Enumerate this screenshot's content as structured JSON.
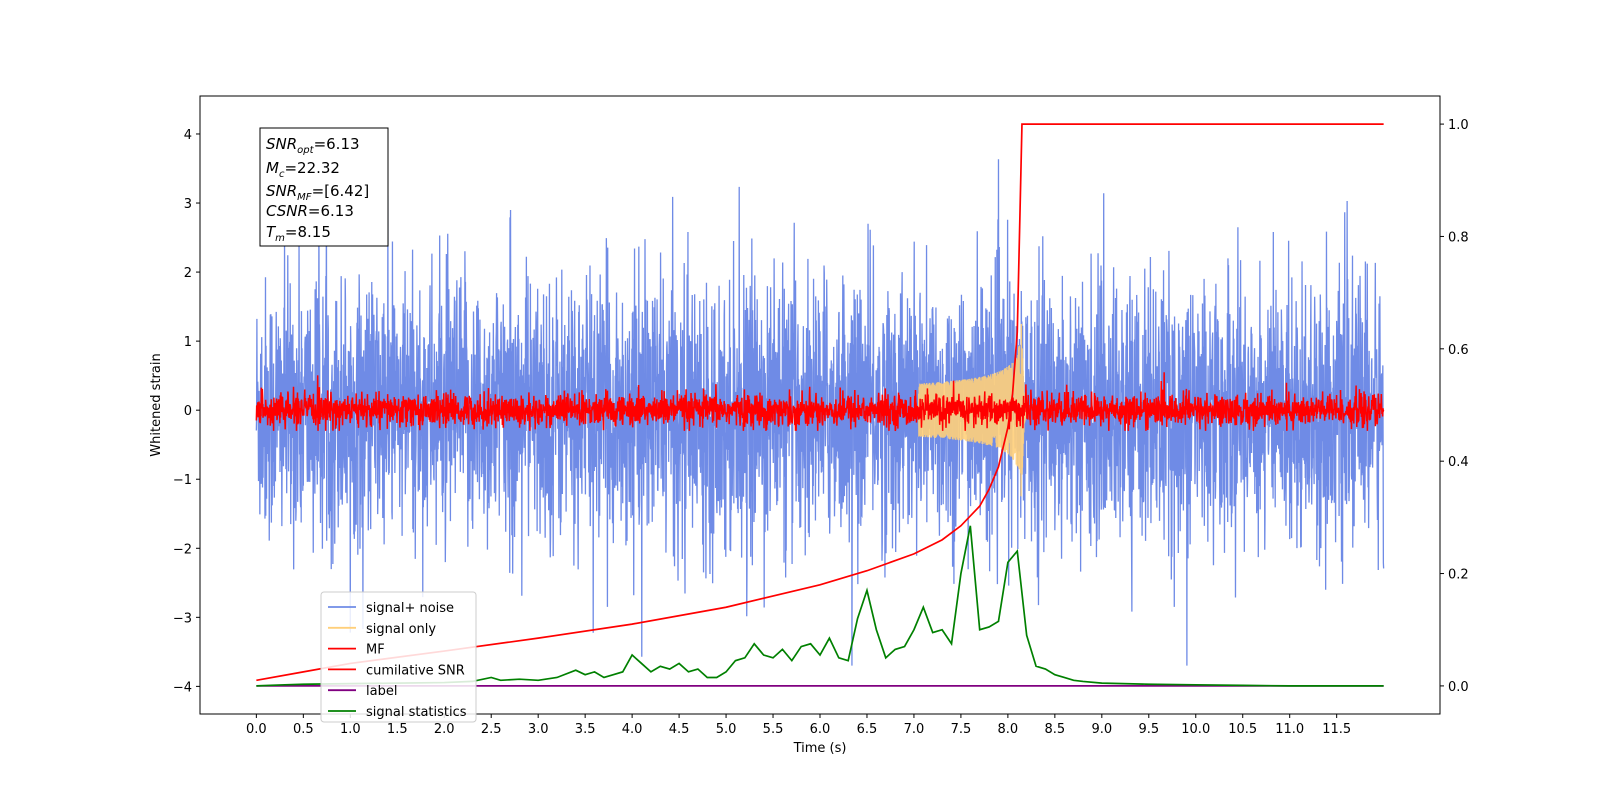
{
  "chart_data": {
    "type": "line",
    "xlabel": "Time (s)",
    "ylabel": "Whitened strain",
    "xlim": [
      -0.6,
      12.6
    ],
    "ylim": [
      -4.4,
      4.55
    ],
    "y2lim": [
      -0.05,
      1.05
    ],
    "x_ticks": [
      0.0,
      0.5,
      1.0,
      1.5,
      2.0,
      2.5,
      3.0,
      3.5,
      4.0,
      4.5,
      5.0,
      5.5,
      6.0,
      6.5,
      7.0,
      7.5,
      8.0,
      8.5,
      9.0,
      9.5,
      10.0,
      10.5,
      11.0,
      11.5
    ],
    "x_tick_labels": [
      "0.0",
      "0.5",
      "1.0",
      "1.5",
      "2.0",
      "2.5",
      "3.0",
      "3.5",
      "4.0",
      "4.5",
      "5.0",
      "5.5",
      "6.0",
      "6.5",
      "7.0",
      "7.5",
      "8.0",
      "8.5",
      "9.0",
      "9.5",
      "10.0",
      "10.5",
      "11.0",
      "11.5"
    ],
    "y_ticks": [
      -4,
      -3,
      -2,
      -1,
      0,
      1,
      2,
      3,
      4
    ],
    "y_tick_labels": [
      "−4",
      "−3",
      "−2",
      "−1",
      "0",
      "1",
      "2",
      "3",
      "4"
    ],
    "y2_ticks": [
      0.0,
      0.2,
      0.4,
      0.6,
      0.8,
      1.0
    ],
    "y2_tick_labels": [
      "0.0",
      "0.2",
      "0.4",
      "0.6",
      "0.8",
      "1.0"
    ],
    "legend_position": "lower-left",
    "series": [
      {
        "name": "signal+ noise",
        "color": "#6f8be6",
        "axis": "left",
        "kind": "noise",
        "x_range": [
          0.0,
          12.0
        ],
        "std": 0.95,
        "peak_range": [
          -3.7,
          4.2
        ]
      },
      {
        "name": "signal only",
        "color": "#ffcf7a",
        "axis": "left",
        "kind": "chirp",
        "t_merger": 8.15,
        "peak_amplitude": 1.25
      },
      {
        "name": "MF",
        "color": "#ff0000",
        "axis": "left",
        "kind": "noise",
        "x_range": [
          0.0,
          12.0
        ],
        "std": 0.12,
        "peak_range": [
          -0.3,
          0.55
        ]
      },
      {
        "name": "cumilative SNR",
        "color": "#ff0000",
        "axis": "right",
        "x": [
          0.0,
          0.5,
          1.0,
          2.0,
          3.0,
          4.0,
          5.0,
          6.0,
          6.5,
          7.0,
          7.3,
          7.5,
          7.7,
          7.8,
          7.9,
          8.0,
          8.05,
          8.1,
          8.13,
          8.15,
          8.2,
          12.0
        ],
        "y": [
          0.01,
          0.025,
          0.04,
          0.062,
          0.085,
          0.11,
          0.14,
          0.18,
          0.205,
          0.235,
          0.26,
          0.285,
          0.32,
          0.35,
          0.39,
          0.46,
          0.52,
          0.63,
          0.85,
          1.0,
          1.0,
          1.0
        ]
      },
      {
        "name": "label",
        "color": "#800080",
        "axis": "right",
        "x": [
          0.0,
          12.0
        ],
        "y": [
          0.0,
          0.0
        ]
      },
      {
        "name": "signal statistics",
        "color": "#008000",
        "axis": "right",
        "x": [
          0.0,
          0.3,
          0.5,
          1.0,
          1.5,
          2.0,
          2.3,
          2.5,
          2.6,
          2.8,
          3.0,
          3.2,
          3.4,
          3.5,
          3.6,
          3.7,
          3.8,
          3.9,
          4.0,
          4.1,
          4.2,
          4.3,
          4.4,
          4.5,
          4.6,
          4.7,
          4.8,
          4.9,
          5.0,
          5.1,
          5.2,
          5.3,
          5.4,
          5.5,
          5.6,
          5.7,
          5.8,
          5.9,
          6.0,
          6.1,
          6.2,
          6.3,
          6.4,
          6.5,
          6.6,
          6.7,
          6.8,
          6.9,
          7.0,
          7.1,
          7.2,
          7.3,
          7.4,
          7.5,
          7.6,
          7.7,
          7.8,
          7.9,
          8.0,
          8.1,
          8.2,
          8.3,
          8.4,
          8.5,
          8.6,
          8.7,
          8.8,
          9.0,
          9.5,
          10.0,
          10.5,
          11.0,
          12.0
        ],
        "y": [
          0.0,
          0.002,
          0.003,
          0.004,
          0.005,
          0.006,
          0.008,
          0.015,
          0.01,
          0.012,
          0.01,
          0.015,
          0.028,
          0.02,
          0.025,
          0.015,
          0.02,
          0.025,
          0.055,
          0.04,
          0.025,
          0.035,
          0.03,
          0.04,
          0.025,
          0.03,
          0.015,
          0.015,
          0.025,
          0.045,
          0.05,
          0.075,
          0.055,
          0.05,
          0.065,
          0.045,
          0.07,
          0.075,
          0.055,
          0.085,
          0.05,
          0.045,
          0.12,
          0.17,
          0.1,
          0.05,
          0.065,
          0.07,
          0.1,
          0.14,
          0.095,
          0.1,
          0.075,
          0.2,
          0.285,
          0.1,
          0.105,
          0.115,
          0.22,
          0.24,
          0.09,
          0.035,
          0.03,
          0.02,
          0.015,
          0.01,
          0.008,
          0.005,
          0.003,
          0.002,
          0.001,
          0.0,
          0.0
        ]
      }
    ],
    "annotations": {
      "snr_opt": "=6.13",
      "mc": "=22.32",
      "snr_mf": "=[6.42]",
      "csnr": "=6.13",
      "tm": "=8.15"
    }
  }
}
